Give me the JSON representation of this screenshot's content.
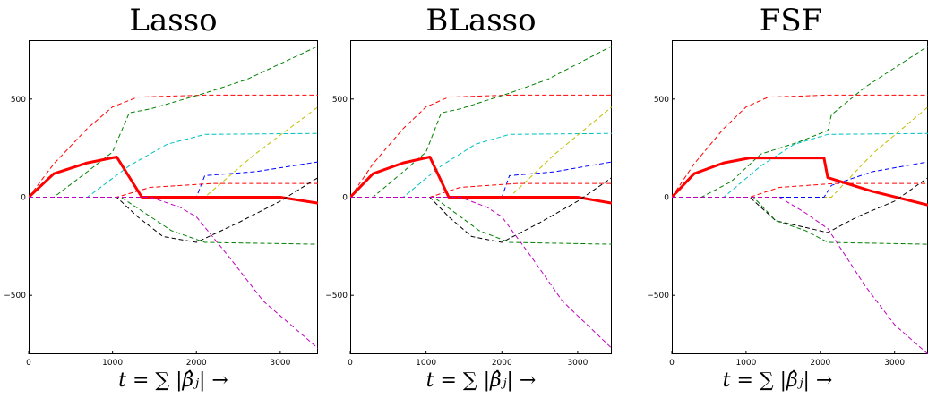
{
  "chart_data": [
    {
      "type": "line",
      "title": "Lasso",
      "xlabel": "t = ∑ |β̂ⱼ| →",
      "ylabel": "",
      "xlim": [
        0,
        3450
      ],
      "ylim": [
        -800,
        800
      ],
      "xticks": [
        0,
        1000,
        2000,
        3000
      ],
      "yticks": [
        -500,
        0,
        500
      ],
      "xtick_labels": [
        "0",
        "1000",
        "2000",
        "3000"
      ],
      "ytick_labels": [
        "−500",
        "0",
        "500"
      ],
      "grid": false,
      "series": [
        {
          "color": "#ff0000",
          "style": "dashed",
          "points": [
            [
              0,
              0
            ],
            [
              300,
              170
            ],
            [
              700,
              350
            ],
            [
              1000,
              460
            ],
            [
              1300,
              510
            ],
            [
              2100,
              520
            ],
            [
              3450,
              520
            ]
          ]
        },
        {
          "color": "#008000",
          "style": "dashed",
          "points": [
            [
              0,
              0
            ],
            [
              300,
              0
            ],
            [
              700,
              130
            ],
            [
              1000,
              230
            ],
            [
              1200,
              430
            ],
            [
              1450,
              450
            ],
            [
              2100,
              530
            ],
            [
              2600,
              600
            ],
            [
              3450,
              770
            ]
          ]
        },
        {
          "color": "#00bfbf",
          "style": "dashed",
          "points": [
            [
              0,
              0
            ],
            [
              700,
              0
            ],
            [
              1200,
              160
            ],
            [
              1650,
              270
            ],
            [
              2100,
              320
            ],
            [
              3450,
              325
            ]
          ]
        },
        {
          "color": "#bfbf00",
          "style": "dashed",
          "points": [
            [
              0,
              0
            ],
            [
              2100,
              0
            ],
            [
              2700,
              220
            ],
            [
              3450,
              460
            ]
          ]
        },
        {
          "color": "#0000ff",
          "style": "dashed",
          "points": [
            [
              0,
              0
            ],
            [
              2000,
              0
            ],
            [
              2100,
              110
            ],
            [
              2700,
              130
            ],
            [
              3450,
              180
            ]
          ]
        },
        {
          "color": "#ff0000",
          "style": "dashed",
          "points": [
            [
              0,
              0
            ],
            [
              1050,
              0
            ],
            [
              1450,
              50
            ],
            [
              2200,
              70
            ],
            [
              3450,
              70
            ]
          ]
        },
        {
          "color": "#ff0000",
          "style": "solid-thick",
          "points": [
            [
              0,
              0
            ],
            [
              300,
              120
            ],
            [
              700,
              175
            ],
            [
              1050,
              205
            ],
            [
              1350,
              0
            ],
            [
              3000,
              0
            ],
            [
              3450,
              -30
            ]
          ]
        },
        {
          "color": "#000000",
          "style": "dashed",
          "points": [
            [
              0,
              0
            ],
            [
              1050,
              0
            ],
            [
              1300,
              -100
            ],
            [
              1600,
              -200
            ],
            [
              2000,
              -230
            ],
            [
              2500,
              -130
            ],
            [
              3000,
              -20
            ],
            [
              3450,
              100
            ]
          ]
        },
        {
          "color": "#008000",
          "style": "dashed",
          "points": [
            [
              0,
              0
            ],
            [
              1100,
              0
            ],
            [
              1350,
              -70
            ],
            [
              1700,
              -170
            ],
            [
              2100,
              -230
            ],
            [
              3450,
              -240
            ]
          ]
        },
        {
          "color": "#bf00bf",
          "style": "dashed",
          "points": [
            [
              0,
              0
            ],
            [
              1450,
              0
            ],
            [
              1800,
              -50
            ],
            [
              2000,
              -100
            ],
            [
              2400,
              -310
            ],
            [
              2800,
              -530
            ],
            [
              3450,
              -770
            ]
          ]
        }
      ]
    },
    {
      "type": "line",
      "title": "BLasso",
      "xlabel": "t = ∑ |β̂ⱼ| →",
      "ylabel": "",
      "xlim": [
        0,
        3450
      ],
      "ylim": [
        -800,
        800
      ],
      "xticks": [
        0,
        1000,
        2000,
        3000
      ],
      "yticks": [
        -500,
        0,
        500
      ],
      "xtick_labels": [
        "0",
        "1000",
        "2000",
        "3000"
      ],
      "ytick_labels": [
        "−500",
        "0",
        "500"
      ],
      "grid": false,
      "series": [
        {
          "color": "#ff0000",
          "style": "dashed",
          "points": [
            [
              0,
              0
            ],
            [
              300,
              170
            ],
            [
              700,
              350
            ],
            [
              1000,
              460
            ],
            [
              1300,
              510
            ],
            [
              2100,
              520
            ],
            [
              3450,
              520
            ]
          ]
        },
        {
          "color": "#008000",
          "style": "dashed",
          "points": [
            [
              0,
              0
            ],
            [
              300,
              0
            ],
            [
              700,
              130
            ],
            [
              1000,
              230
            ],
            [
              1200,
              430
            ],
            [
              1450,
              450
            ],
            [
              2100,
              530
            ],
            [
              2600,
              600
            ],
            [
              3450,
              770
            ]
          ]
        },
        {
          "color": "#00bfbf",
          "style": "dashed",
          "points": [
            [
              0,
              0
            ],
            [
              700,
              0
            ],
            [
              1200,
              160
            ],
            [
              1650,
              270
            ],
            [
              2100,
              320
            ],
            [
              3450,
              325
            ]
          ]
        },
        {
          "color": "#bfbf00",
          "style": "dashed",
          "points": [
            [
              0,
              0
            ],
            [
              2100,
              0
            ],
            [
              2700,
              220
            ],
            [
              3450,
              460
            ]
          ]
        },
        {
          "color": "#0000ff",
          "style": "dashed",
          "points": [
            [
              0,
              0
            ],
            [
              2000,
              0
            ],
            [
              2100,
              110
            ],
            [
              2700,
              130
            ],
            [
              3450,
              180
            ]
          ]
        },
        {
          "color": "#ff0000",
          "style": "dashed",
          "points": [
            [
              0,
              0
            ],
            [
              1050,
              0
            ],
            [
              1450,
              50
            ],
            [
              2200,
              70
            ],
            [
              3450,
              70
            ]
          ]
        },
        {
          "color": "#ff0000",
          "style": "solid-thick",
          "points": [
            [
              0,
              0
            ],
            [
              300,
              120
            ],
            [
              700,
              175
            ],
            [
              1050,
              205
            ],
            [
              1300,
              0
            ],
            [
              3000,
              0
            ],
            [
              3450,
              -30
            ]
          ]
        },
        {
          "color": "#000000",
          "style": "dashed",
          "points": [
            [
              0,
              0
            ],
            [
              1050,
              0
            ],
            [
              1300,
              -100
            ],
            [
              1600,
              -200
            ],
            [
              2000,
              -230
            ],
            [
              2500,
              -130
            ],
            [
              3000,
              -20
            ],
            [
              3450,
              100
            ]
          ]
        },
        {
          "color": "#008000",
          "style": "dashed",
          "points": [
            [
              0,
              0
            ],
            [
              1100,
              0
            ],
            [
              1350,
              -70
            ],
            [
              1700,
              -170
            ],
            [
              2100,
              -230
            ],
            [
              3450,
              -240
            ]
          ]
        },
        {
          "color": "#bf00bf",
          "style": "dashed",
          "points": [
            [
              0,
              0
            ],
            [
              1450,
              0
            ],
            [
              1800,
              -50
            ],
            [
              2000,
              -100
            ],
            [
              2400,
              -310
            ],
            [
              2800,
              -530
            ],
            [
              3450,
              -770
            ]
          ]
        }
      ]
    },
    {
      "type": "line",
      "title": "FSF",
      "xlabel": "t = ∑ |β̂ⱼ| →",
      "ylabel": "",
      "xlim": [
        0,
        3450
      ],
      "ylim": [
        -800,
        800
      ],
      "xticks": [
        0,
        1000,
        2000,
        3000
      ],
      "yticks": [
        -500,
        0,
        500
      ],
      "xtick_labels": [
        "0",
        "1000",
        "2000",
        "3000"
      ],
      "ytick_labels": [
        "−500",
        "0",
        "500"
      ],
      "grid": false,
      "series": [
        {
          "color": "#ff0000",
          "style": "dashed",
          "points": [
            [
              0,
              0
            ],
            [
              300,
              170
            ],
            [
              700,
              350
            ],
            [
              1000,
              460
            ],
            [
              1300,
              510
            ],
            [
              2100,
              520
            ],
            [
              3450,
              520
            ]
          ]
        },
        {
          "color": "#008000",
          "style": "dashed",
          "points": [
            [
              0,
              0
            ],
            [
              400,
              0
            ],
            [
              800,
              80
            ],
            [
              1200,
              220
            ],
            [
              1700,
              280
            ],
            [
              2100,
              340
            ],
            [
              2150,
              420
            ],
            [
              2600,
              560
            ],
            [
              3450,
              770
            ]
          ]
        },
        {
          "color": "#00bfbf",
          "style": "dashed",
          "points": [
            [
              0,
              0
            ],
            [
              700,
              0
            ],
            [
              1200,
              160
            ],
            [
              1650,
              270
            ],
            [
              2100,
              320
            ],
            [
              3450,
              325
            ]
          ]
        },
        {
          "color": "#bfbf00",
          "style": "dashed",
          "points": [
            [
              0,
              0
            ],
            [
              2150,
              0
            ],
            [
              2700,
              220
            ],
            [
              3450,
              460
            ]
          ]
        },
        {
          "color": "#0000ff",
          "style": "dashed",
          "points": [
            [
              0,
              0
            ],
            [
              2050,
              0
            ],
            [
              2150,
              60
            ],
            [
              2700,
              130
            ],
            [
              3450,
              180
            ]
          ]
        },
        {
          "color": "#ff0000",
          "style": "dashed",
          "points": [
            [
              0,
              0
            ],
            [
              1050,
              0
            ],
            [
              1450,
              50
            ],
            [
              2200,
              70
            ],
            [
              3450,
              70
            ]
          ]
        },
        {
          "color": "#ff0000",
          "style": "solid-thick",
          "points": [
            [
              0,
              0
            ],
            [
              300,
              120
            ],
            [
              700,
              175
            ],
            [
              1050,
              200
            ],
            [
              2050,
              200
            ],
            [
              2100,
              100
            ],
            [
              2700,
              30
            ],
            [
              3450,
              -40
            ]
          ]
        },
        {
          "color": "#000000",
          "style": "dashed",
          "points": [
            [
              0,
              0
            ],
            [
              1050,
              0
            ],
            [
              1400,
              -120
            ],
            [
              2100,
              -180
            ],
            [
              2500,
              -100
            ],
            [
              3000,
              -20
            ],
            [
              3450,
              100
            ]
          ]
        },
        {
          "color": "#008000",
          "style": "dashed",
          "points": [
            [
              0,
              0
            ],
            [
              1100,
              0
            ],
            [
              1400,
              -120
            ],
            [
              1800,
              -170
            ],
            [
              2100,
              -230
            ],
            [
              3450,
              -240
            ]
          ]
        },
        {
          "color": "#bf00bf",
          "style": "dashed",
          "points": [
            [
              0,
              0
            ],
            [
              1450,
              0
            ],
            [
              1800,
              -80
            ],
            [
              2100,
              -160
            ],
            [
              2600,
              -450
            ],
            [
              3000,
              -650
            ],
            [
              3450,
              -800
            ]
          ]
        }
      ]
    }
  ]
}
